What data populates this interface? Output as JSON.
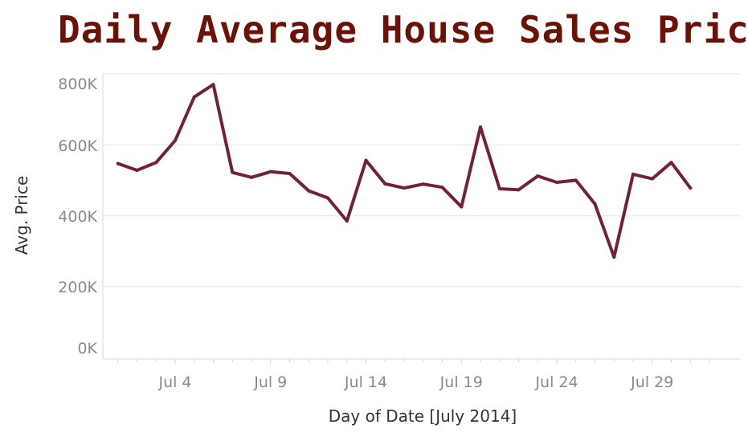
{
  "chart_data": {
    "type": "line",
    "title": "Daily Average House Sales Price",
    "xlabel": "Day of Date [July 2014]",
    "ylabel": "Avg. Price",
    "x_ticks": [
      "Jul 4",
      "Jul 9",
      "Jul 14",
      "Jul 19",
      "Jul 24",
      "Jul 29"
    ],
    "y_ticks": [
      "0K",
      "200K",
      "400K",
      "600K",
      "800K"
    ],
    "ylim": [
      0,
      800000
    ],
    "xlim": [
      0,
      32
    ],
    "grid": true,
    "colors": {
      "line": "#722238",
      "title": "#6b1206",
      "grid": "#ececec"
    },
    "series": [
      {
        "x": [
          1,
          2,
          3,
          4,
          5,
          6,
          7,
          8,
          9,
          10,
          11,
          12,
          13,
          14,
          15,
          16,
          17,
          18,
          19,
          20,
          21,
          22,
          23,
          24,
          25,
          26,
          27,
          28,
          29,
          30,
          31
        ],
        "values": [
          547000,
          528000,
          550000,
          612000,
          735000,
          770000,
          522000,
          508000,
          524000,
          519000,
          470000,
          450000,
          385000,
          556000,
          490000,
          478000,
          489000,
          480000,
          425000,
          650000,
          476000,
          473000,
          512000,
          494000,
          500000,
          433000,
          283000,
          517000,
          504000,
          550000,
          478000
        ]
      }
    ]
  }
}
